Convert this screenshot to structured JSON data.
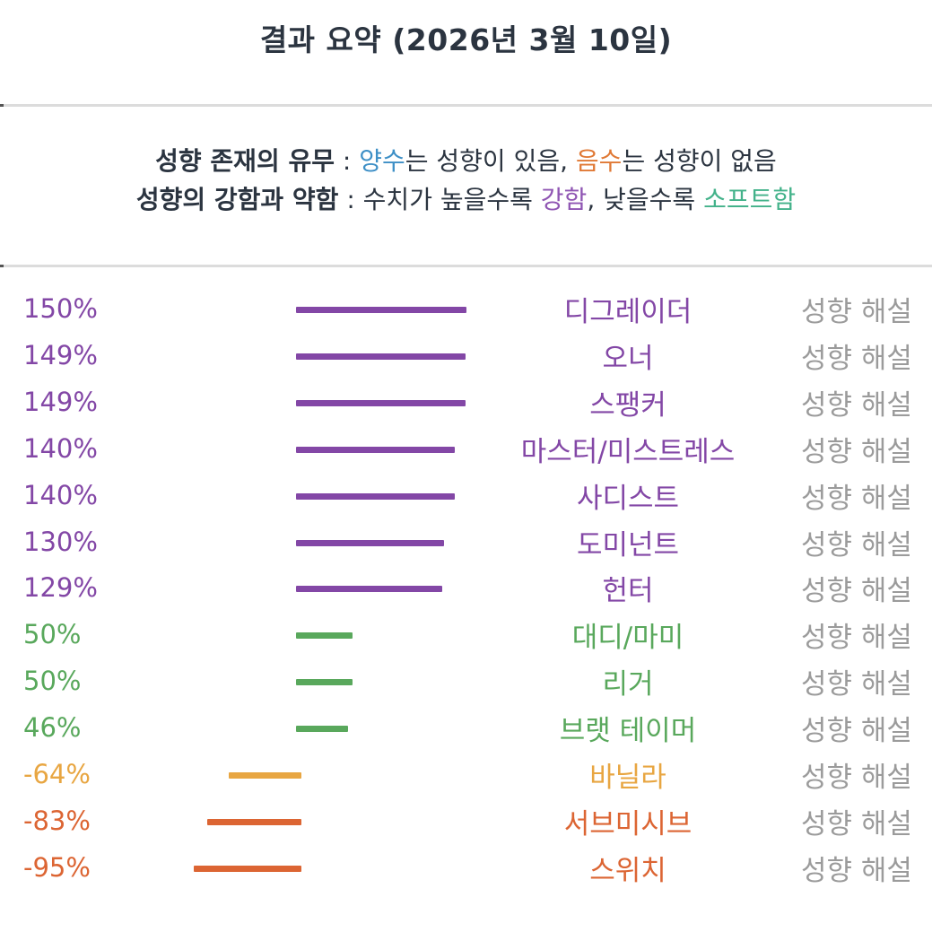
{
  "header": {
    "title": "결과 요약 (2026년 3월 10일)"
  },
  "legend": {
    "line1": {
      "bold": "성향 존재의 유무",
      "sep": " : ",
      "positive_word": "양수",
      "positive_rest": "는 성향이 있음, ",
      "negative_word": "음수",
      "negative_rest": "는 성향이 없음"
    },
    "line2": {
      "bold": "성향의 강함과 약함",
      "sep": " : 수치가 높을수록 ",
      "strong_word": "강함",
      "mid": ", 낮을수록 ",
      "soft_word": "소프트함"
    }
  },
  "colors": {
    "strong": "#8347a6",
    "mild": "#59a85c",
    "low_negative": "#e8a642",
    "negative": "#dc6533",
    "positive_legend": "#3d8fc6",
    "negative_legend": "#e07935",
    "strong_legend": "#8f55b3",
    "soft_legend": "#43b28a"
  },
  "link_label": "성향 해설",
  "chart_data": {
    "type": "bar",
    "title": "결과 요약 (2026년 3월 10일)",
    "orientation": "horizontal",
    "unit": "%",
    "categories": [
      "디그레이더",
      "오너",
      "스팽커",
      "마스터/미스트레스",
      "사디스트",
      "도미넌트",
      "헌터",
      "대디/마미",
      "리거",
      "브랫 테이머",
      "바닐라",
      "서브미시브",
      "스위치"
    ],
    "values": [
      150,
      149,
      149,
      140,
      140,
      130,
      129,
      50,
      50,
      46,
      -64,
      -83,
      -95
    ],
    "display_values": [
      "150%",
      "149%",
      "149%",
      "140%",
      "140%",
      "130%",
      "129%",
      "50%",
      "50%",
      "46%",
      "-64%",
      "-83%",
      "-95%"
    ],
    "color_groups": [
      "strong",
      "strong",
      "strong",
      "strong",
      "strong",
      "strong",
      "strong",
      "mild",
      "mild",
      "mild",
      "low_negative",
      "negative",
      "negative"
    ]
  }
}
